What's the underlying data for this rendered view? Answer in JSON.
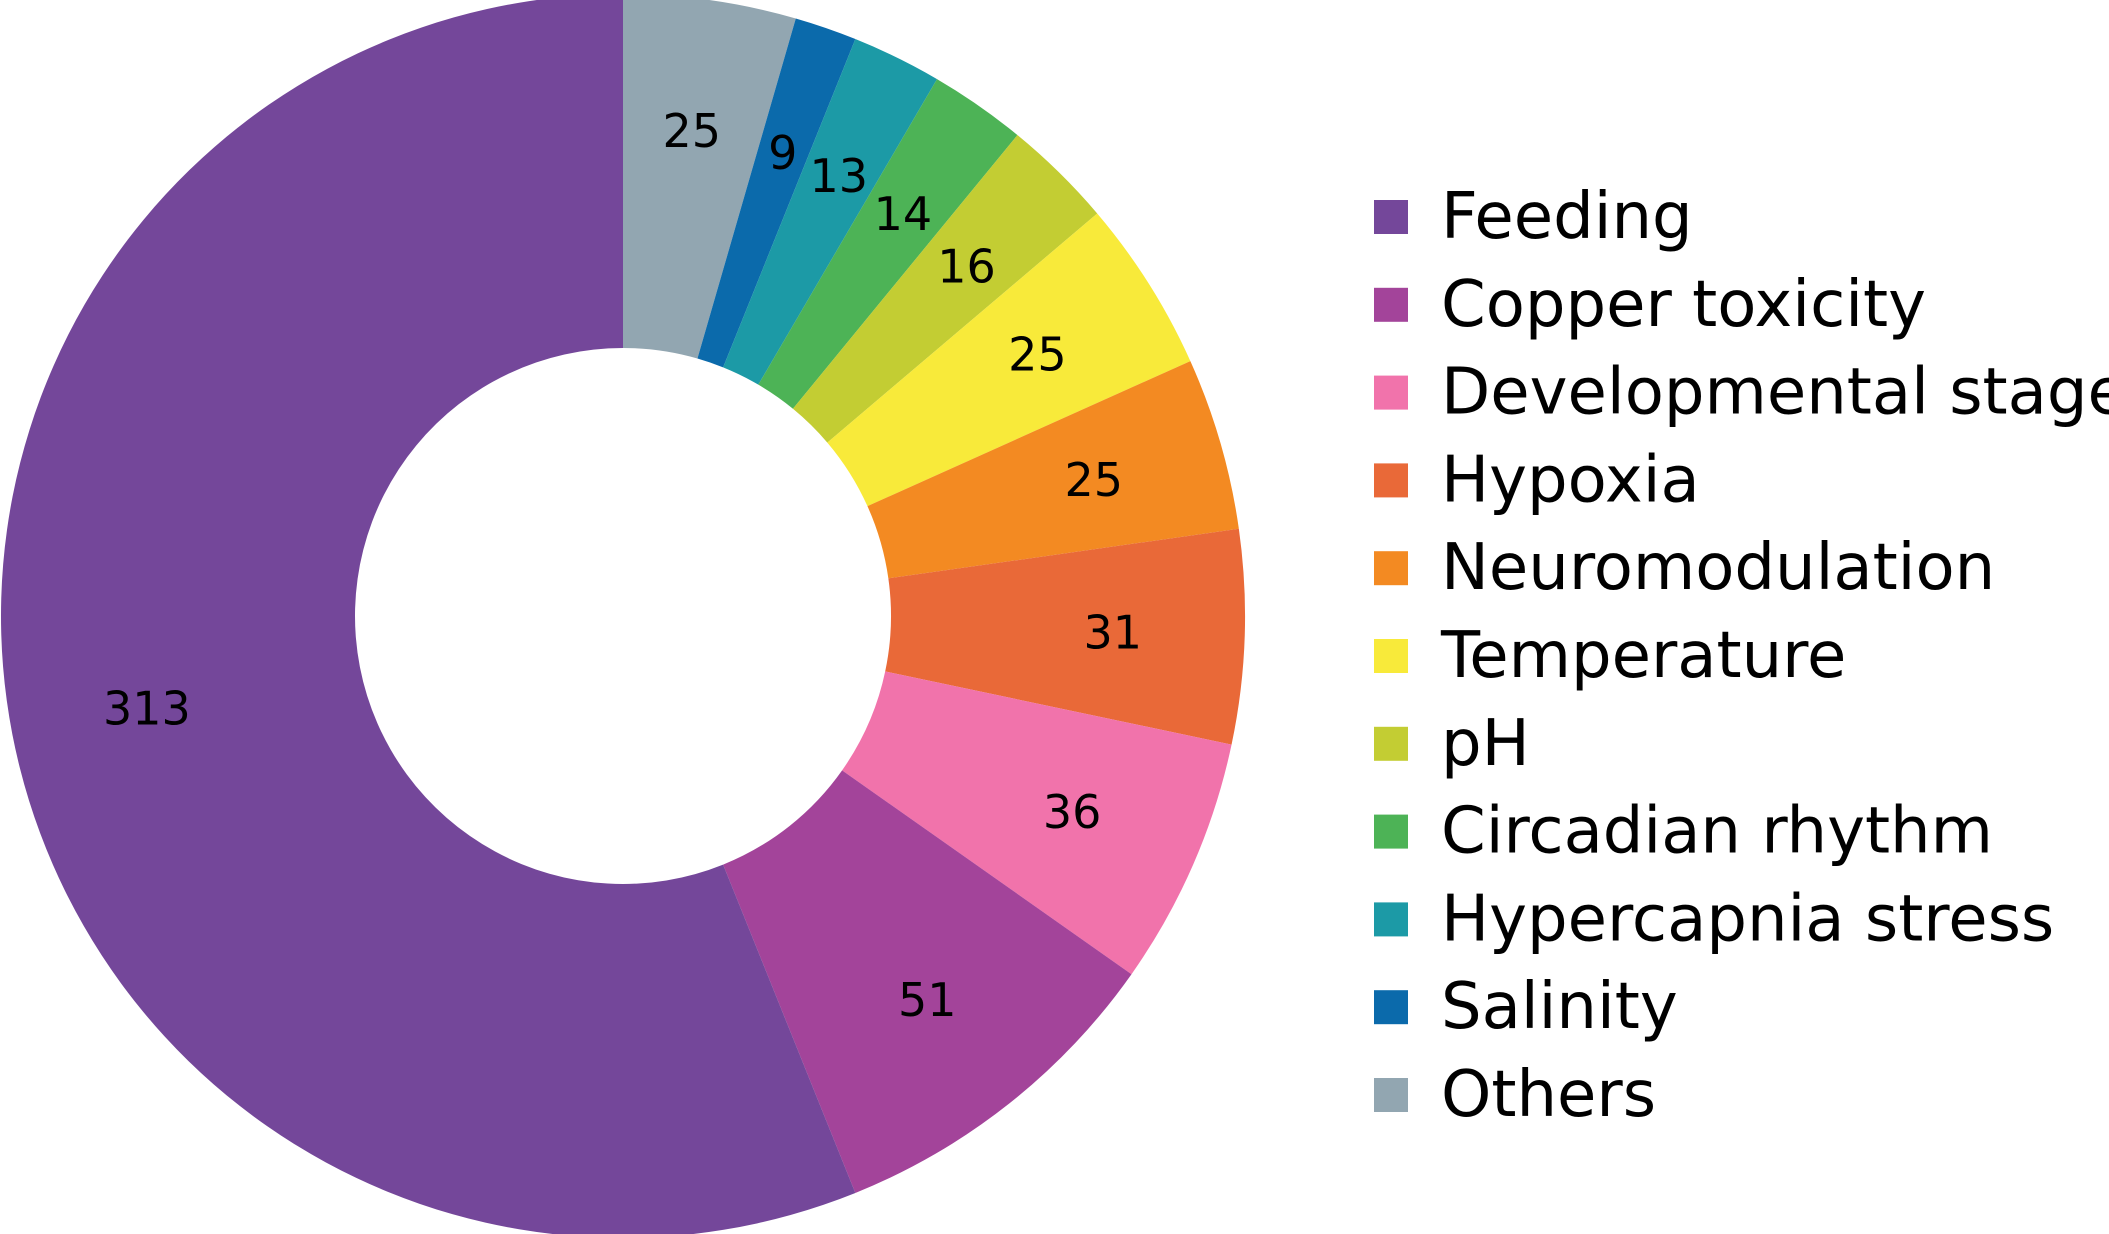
{
  "chart_data": {
    "type": "pie",
    "variant": "donut",
    "title": "",
    "start": "top",
    "direction": "clockwise",
    "legend_position": "right",
    "slices": [
      {
        "label": "Others",
        "value": 25,
        "color": "#92a6b1"
      },
      {
        "label": "Salinity",
        "value": 9,
        "color": "#0b6aab"
      },
      {
        "label": "Hypercapnia stress",
        "value": 13,
        "color": "#1c9aa6"
      },
      {
        "label": "Circadian rhythm",
        "value": 14,
        "color": "#4db356"
      },
      {
        "label": "pH",
        "value": 16,
        "color": "#c3cd33"
      },
      {
        "label": "Temperature",
        "value": 25,
        "color": "#f8ea3a"
      },
      {
        "label": "Neuromodulation",
        "value": 25,
        "color": "#f38a22"
      },
      {
        "label": "Hypoxia",
        "value": 31,
        "color": "#e96938"
      },
      {
        "label": "Developmental stages",
        "value": 36,
        "color": "#f173ab"
      },
      {
        "label": "Copper toxicity",
        "value": 51,
        "color": "#a3449a"
      },
      {
        "label": "Feeding",
        "value": 313,
        "color": "#74479a"
      }
    ],
    "legend_order": [
      "Feeding",
      "Copper toxicity",
      "Developmental stages",
      "Hypoxia",
      "Neuromodulation",
      "Temperature",
      "pH",
      "Circadian rhythm",
      "Hypercapnia stress",
      "Salinity",
      "Others"
    ]
  }
}
